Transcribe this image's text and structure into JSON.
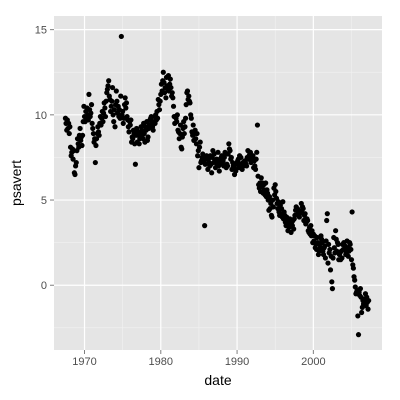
{
  "chart_data": {
    "type": "scatter",
    "title": "",
    "xlabel": "date",
    "ylabel": "psavert",
    "xlim": [
      1966.0,
      2009.0
    ],
    "ylim": [
      -3.8,
      15.8
    ],
    "x_ticks": [
      1970,
      1980,
      1990,
      2000
    ],
    "y_ticks": [
      0,
      5,
      10,
      15
    ],
    "x_tick_labels": [
      "1970",
      "1980",
      "1990",
      "2000"
    ],
    "y_tick_labels": [
      "0",
      "5",
      "10",
      "15"
    ],
    "grid": true,
    "legend": "none",
    "colors": {
      "panel": "#e5e5e5",
      "grid_major": "#ffffff",
      "grid_minor": "#f2f2f2",
      "point": "#000000",
      "tick": "#7f7f7f"
    },
    "x": [
      1967.5,
      1967.58,
      1967.67,
      1967.75,
      1967.83,
      1967.92,
      1968.0,
      1968.08,
      1968.17,
      1968.25,
      1968.33,
      1968.42,
      1968.5,
      1968.58,
      1968.67,
      1968.75,
      1968.83,
      1968.92,
      1969.0,
      1969.08,
      1969.17,
      1969.25,
      1969.33,
      1969.42,
      1969.5,
      1969.58,
      1969.67,
      1969.75,
      1969.83,
      1969.92,
      1970.0,
      1970.08,
      1970.17,
      1970.25,
      1970.33,
      1970.42,
      1970.5,
      1970.58,
      1970.67,
      1970.75,
      1970.83,
      1970.92,
      1971.0,
      1971.08,
      1971.17,
      1971.25,
      1971.33,
      1971.42,
      1971.5,
      1971.58,
      1971.67,
      1971.75,
      1971.83,
      1971.92,
      1972.0,
      1972.08,
      1972.17,
      1972.25,
      1972.33,
      1972.42,
      1972.5,
      1972.58,
      1972.67,
      1972.75,
      1972.83,
      1972.92,
      1973.0,
      1973.08,
      1973.17,
      1973.25,
      1973.33,
      1973.42,
      1973.5,
      1973.58,
      1973.67,
      1973.75,
      1973.83,
      1973.92,
      1974.0,
      1974.08,
      1974.17,
      1974.25,
      1974.33,
      1974.42,
      1974.5,
      1974.58,
      1974.67,
      1974.75,
      1974.83,
      1974.92,
      1975.0,
      1975.08,
      1975.17,
      1975.25,
      1975.33,
      1975.42,
      1975.5,
      1975.58,
      1975.67,
      1975.75,
      1975.83,
      1975.92,
      1976.0,
      1976.08,
      1976.17,
      1976.25,
      1976.33,
      1976.42,
      1976.5,
      1976.58,
      1976.67,
      1976.75,
      1976.83,
      1976.92,
      1977.0,
      1977.08,
      1977.17,
      1977.25,
      1977.33,
      1977.42,
      1977.5,
      1977.58,
      1977.67,
      1977.75,
      1977.83,
      1977.92,
      1978.0,
      1978.08,
      1978.17,
      1978.25,
      1978.33,
      1978.42,
      1978.5,
      1978.58,
      1978.67,
      1978.75,
      1978.83,
      1978.92,
      1979.0,
      1979.08,
      1979.17,
      1979.25,
      1979.33,
      1979.42,
      1979.5,
      1979.58,
      1979.67,
      1979.75,
      1979.83,
      1979.92,
      1980.0,
      1980.08,
      1980.17,
      1980.25,
      1980.33,
      1980.42,
      1980.5,
      1980.58,
      1980.67,
      1980.75,
      1980.83,
      1980.92,
      1981.0,
      1981.08,
      1981.17,
      1981.25,
      1981.33,
      1981.42,
      1981.5,
      1981.58,
      1981.67,
      1981.75,
      1981.83,
      1981.92,
      1982.0,
      1982.08,
      1982.17,
      1982.25,
      1982.33,
      1982.42,
      1982.5,
      1982.58,
      1982.67,
      1982.75,
      1982.83,
      1982.92,
      1983.0,
      1983.08,
      1983.17,
      1983.25,
      1983.33,
      1983.42,
      1983.5,
      1983.58,
      1983.67,
      1983.75,
      1983.83,
      1983.92,
      1984.0,
      1984.08,
      1984.17,
      1984.25,
      1984.33,
      1984.42,
      1984.5,
      1984.58,
      1984.67,
      1984.75,
      1984.83,
      1984.92,
      1985.0,
      1985.08,
      1985.17,
      1985.25,
      1985.33,
      1985.42,
      1985.5,
      1985.58,
      1985.67,
      1985.75,
      1985.83,
      1985.92,
      1986.0,
      1986.08,
      1986.17,
      1986.25,
      1986.33,
      1986.42,
      1986.5,
      1986.58,
      1986.67,
      1986.75,
      1986.83,
      1986.92,
      1987.0,
      1987.08,
      1987.17,
      1987.25,
      1987.33,
      1987.42,
      1987.5,
      1987.58,
      1987.67,
      1987.75,
      1987.83,
      1987.92,
      1988.0,
      1988.08,
      1988.17,
      1988.25,
      1988.33,
      1988.42,
      1988.5,
      1988.58,
      1988.67,
      1988.75,
      1988.83,
      1988.92,
      1989.0,
      1989.08,
      1989.17,
      1989.25,
      1989.33,
      1989.42,
      1989.5,
      1989.58,
      1989.67,
      1989.75,
      1989.83,
      1989.92,
      1990.0,
      1990.08,
      1990.17,
      1990.25,
      1990.33,
      1990.42,
      1990.5,
      1990.58,
      1990.67,
      1990.75,
      1990.83,
      1990.92,
      1991.0,
      1991.08,
      1991.17,
      1991.25,
      1991.33,
      1991.42,
      1991.5,
      1991.58,
      1991.67,
      1991.75,
      1991.83,
      1991.92,
      1992.0,
      1992.08,
      1992.17,
      1992.25,
      1992.33,
      1992.42,
      1992.5,
      1992.58,
      1992.67,
      1992.75,
      1992.83,
      1992.92,
      1993.0,
      1993.08,
      1993.17,
      1993.25,
      1993.33,
      1993.42,
      1993.5,
      1993.58,
      1993.67,
      1993.75,
      1993.83,
      1993.92,
      1994.0,
      1994.08,
      1994.17,
      1994.25,
      1994.33,
      1994.42,
      1994.5,
      1994.58,
      1994.67,
      1994.75,
      1994.83,
      1994.92,
      1995.0,
      1995.08,
      1995.17,
      1995.25,
      1995.33,
      1995.42,
      1995.5,
      1995.58,
      1995.67,
      1995.75,
      1995.83,
      1995.92,
      1996.0,
      1996.08,
      1996.17,
      1996.25,
      1996.33,
      1996.42,
      1996.5,
      1996.58,
      1996.67,
      1996.75,
      1996.83,
      1996.92,
      1997.0,
      1997.08,
      1997.17,
      1997.25,
      1997.33,
      1997.42,
      1997.5,
      1997.58,
      1997.67,
      1997.75,
      1997.83,
      1997.92,
      1998.0,
      1998.08,
      1998.17,
      1998.25,
      1998.33,
      1998.42,
      1998.5,
      1998.58,
      1998.67,
      1998.75,
      1998.83,
      1998.92,
      1999.0,
      1999.08,
      1999.17,
      1999.25,
      1999.33,
      1999.42,
      1999.5,
      1999.58,
      1999.67,
      1999.75,
      1999.83,
      1999.92,
      2000.0,
      2000.08,
      2000.17,
      2000.25,
      2000.33,
      2000.42,
      2000.5,
      2000.58,
      2000.67,
      2000.75,
      2000.83,
      2000.92,
      2001.0,
      2001.08,
      2001.17,
      2001.25,
      2001.33,
      2001.42,
      2001.5,
      2001.58,
      2001.67,
      2001.75,
      2001.83,
      2001.92,
      2002.0,
      2002.08,
      2002.17,
      2002.25,
      2002.33,
      2002.42,
      2002.5,
      2002.58,
      2002.67,
      2002.75,
      2002.83,
      2002.92,
      2003.0,
      2003.08,
      2003.17,
      2003.25,
      2003.33,
      2003.42,
      2003.5,
      2003.58,
      2003.67,
      2003.75,
      2003.83,
      2003.92,
      2004.0,
      2004.08,
      2004.17,
      2004.25,
      2004.33,
      2004.42,
      2004.5,
      2004.58,
      2004.67,
      2004.75,
      2004.83,
      2004.92,
      2005.0,
      2005.08,
      2005.17,
      2005.25,
      2005.33,
      2005.42,
      2005.5,
      2005.58,
      2005.67,
      2005.75,
      2005.83,
      2005.92,
      2006.0,
      2006.08,
      2006.17,
      2006.25,
      2006.33,
      2006.42,
      2006.5,
      2006.58,
      2006.67,
      2006.75,
      2006.83,
      2006.92,
      2007.0,
      2007.08,
      2007.17,
      2007.25
    ],
    "y": [
      9.8,
      9.5,
      9.1,
      9.7,
      9.2,
      9.5,
      8.9,
      9.3,
      8.1,
      7.6,
      7.8,
      8.0,
      7.4,
      7.9,
      6.6,
      6.5,
      7.0,
      7.2,
      7.9,
      8.6,
      8.3,
      8.1,
      8.8,
      9.2,
      8.5,
      8.7,
      8.2,
      8.8,
      9.6,
      10.5,
      9.9,
      9.6,
      10.2,
      9.8,
      10.4,
      10.0,
      9.7,
      11.2,
      10.3,
      9.9,
      10.1,
      10.6,
      9.5,
      9.2,
      8.9,
      8.4,
      8.6,
      7.2,
      8.2,
      8.6,
      8.9,
      9.3,
      9.0,
      8.8,
      9.5,
      9.9,
      9.4,
      9.8,
      10.2,
      9.6,
      10.1,
      10.7,
      10.4,
      9.9,
      10.8,
      11.3,
      11.5,
      11.7,
      12.0,
      11.1,
      10.9,
      10.2,
      10.5,
      10.8,
      11.6,
      10.0,
      9.6,
      10.3,
      9.3,
      10.6,
      11.4,
      10.8,
      10.1,
      10.5,
      9.9,
      10.3,
      9.8,
      11.1,
      14.6,
      10.0,
      10.2,
      9.5,
      9.8,
      10.6,
      11.0,
      10.4,
      10.7,
      9.9,
      9.7,
      9.3,
      9.0,
      9.6,
      9.4,
      9.7,
      8.4,
      8.7,
      8.6,
      9.1,
      8.9,
      8.3,
      7.1,
      8.8,
      9.2,
      8.4,
      9.0,
      8.8,
      8.3,
      8.6,
      8.9,
      9.3,
      9.1,
      8.8,
      8.6,
      9.5,
      8.9,
      8.4,
      9.3,
      9.1,
      9.6,
      8.5,
      8.7,
      9.2,
      9.4,
      9.7,
      9.8,
      9.9,
      9.5,
      9.3,
      9.1,
      9.6,
      9.9,
      9.5,
      10.0,
      9.7,
      10.2,
      9.8,
      10.9,
      10.6,
      10.3,
      10.8,
      11.2,
      11.8,
      11.4,
      12.0,
      12.5,
      11.9,
      11.3,
      11.6,
      11.0,
      12.2,
      11.7,
      11.5,
      12.3,
      11.4,
      11.8,
      12.1,
      11.6,
      11.1,
      11.3,
      11.0,
      10.5,
      9.9,
      9.5,
      9.9,
      9.8,
      9.6,
      10.0,
      9.1,
      9.0,
      8.6,
      8.9,
      9.4,
      8.1,
      8.0,
      8.7,
      9.2,
      9.6,
      8.9,
      9.3,
      9.8,
      10.6,
      11.3,
      11.4,
      10.9,
      11.1,
      10.8,
      10.7,
      10.0,
      9.8,
      9.0,
      8.8,
      9.4,
      8.5,
      8.9,
      9.1,
      8.6,
      8.3,
      8.9,
      7.6,
      7.9,
      6.9,
      8.1,
      8.4,
      7.2,
      7.3,
      7.5,
      7.7,
      7.3,
      7.2,
      3.5,
      7.1,
      7.4,
      7.6,
      7.5,
      6.8,
      7.4,
      7.2,
      7.0,
      7.6,
      7.1,
      6.6,
      7.5,
      7.9,
      7.2,
      7.7,
      7.3,
      6.9,
      7.3,
      7.4,
      7.1,
      7.8,
      7.0,
      6.7,
      7.2,
      7.4,
      7.5,
      7.6,
      7.1,
      7.3,
      7.0,
      7.5,
      7.8,
      7.7,
      6.9,
      7.1,
      7.0,
      7.7,
      8.3,
      8.0,
      7.9,
      7.4,
      7.5,
      6.8,
      7.2,
      7.0,
      6.9,
      6.5,
      6.8,
      6.7,
      7.1,
      7.2,
      7.3,
      7.4,
      6.9,
      7.6,
      7.1,
      7.5,
      6.9,
      6.8,
      7.2,
      7.0,
      7.1,
      7.3,
      7.2,
      7.1,
      7.0,
      7.5,
      7.9,
      7.4,
      7.6,
      7.7,
      7.8,
      7.2,
      7.5,
      7.3,
      7.6,
      6.9,
      7.3,
      7.0,
      6.8,
      7.4,
      7.8,
      9.4,
      6.4,
      5.9,
      5.7,
      6.0,
      5.5,
      6.3,
      5.8,
      6.0,
      5.4,
      5.9,
      5.6,
      5.3,
      6.0,
      5.2,
      5.6,
      5.4,
      5.0,
      4.4,
      5.2,
      4.5,
      4.8,
      4.1,
      4.0,
      5.0,
      4.6,
      5.7,
      5.3,
      5.9,
      5.5,
      5.1,
      4.8,
      4.5,
      4.9,
      4.3,
      4.1,
      4.7,
      4.2,
      4.5,
      4.0,
      4.9,
      3.9,
      4.3,
      4.1,
      3.7,
      3.5,
      4.0,
      3.8,
      3.2,
      3.6,
      3.4,
      3.9,
      3.6,
      3.1,
      3.7,
      3.5,
      3.8,
      3.3,
      3.9,
      4.1,
      4.4,
      4.6,
      4.4,
      4.5,
      4.2,
      4.3,
      4.0,
      4.2,
      4.3,
      4.8,
      4.4,
      4.6,
      4.5,
      3.8,
      4.1,
      4.2,
      3.6,
      3.7,
      3.9,
      3.8,
      3.2,
      3.1,
      3.4,
      3.0,
      3.5,
      2.9,
      3.2,
      2.5,
      3.0,
      2.6,
      2.9,
      2.2,
      2.4,
      2.1,
      2.8,
      2.5,
      1.8,
      2.0,
      2.4,
      2.2,
      2.9,
      2.7,
      2.5,
      2.0,
      1.8,
      2.2,
      2.3,
      1.6,
      2.6,
      3.8,
      4.2,
      1.3,
      2.4,
      1.9,
      2.1,
      0.9,
      1.7,
      0.2,
      -0.2,
      1.6,
      2.8,
      2.2,
      1.9,
      3.2,
      2.7,
      2.0,
      2.5,
      2.4,
      1.5,
      1.8,
      1.9,
      1.5,
      2.0,
      1.6,
      2.4,
      2.1,
      2.5,
      2.1,
      2.3,
      1.8,
      1.9,
      2.6,
      2.2,
      1.7,
      2.0,
      2.5,
      2.4,
      2.1,
      1.5,
      4.3,
      1.2,
      1.0,
      0.5,
      0.3,
      -0.1,
      -0.5,
      -0.4,
      -0.3,
      -1.8,
      -2.9,
      -0.4,
      -0.6,
      -0.2,
      -0.7,
      -1.6,
      -1.3,
      -0.9,
      -1.1,
      -1.0,
      -0.8,
      -0.5,
      -1.2,
      -0.7,
      -1.0,
      -1.4,
      -0.9
    ]
  }
}
